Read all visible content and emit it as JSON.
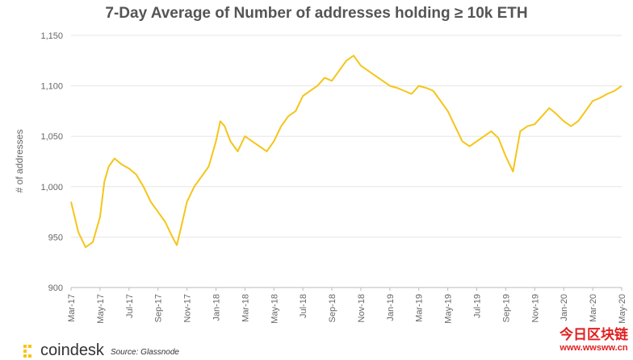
{
  "chart_data": {
    "type": "line",
    "title": "7-Day Average of Number of addresses holding ≥ 10k ETH",
    "ylabel": "# of addresses",
    "xlabel": "",
    "ylim": [
      900,
      1150
    ],
    "yticks": [
      "900",
      "950",
      "1,000",
      "1,050",
      "1,100",
      "1,150"
    ],
    "xticks": [
      "Mar-17",
      "May-17",
      "Jul-17",
      "Sep-17",
      "Nov-17",
      "Jan-18",
      "Mar-18",
      "May-18",
      "Jul-18",
      "Sep-18",
      "Nov-18",
      "Jan-19",
      "Mar-19",
      "May-19",
      "Jul-19",
      "Sep-19",
      "Nov-19",
      "Jan-20",
      "Mar-20",
      "May-20"
    ],
    "grid": "horizontal",
    "line_color": "#f5c518",
    "series": [
      {
        "x": [
          0,
          0.5,
          1,
          1.5,
          2,
          2.3,
          2.6,
          3,
          3.5,
          4,
          4.5,
          5,
          5.5,
          6,
          6.5,
          7,
          7.3,
          7.6,
          8,
          8.5,
          9,
          9.5,
          10,
          10.3,
          10.6,
          11,
          11.5,
          12,
          12.5,
          13,
          13.5,
          14,
          14.5,
          15,
          15.5,
          16,
          16.5,
          17,
          17.5,
          18,
          18.5,
          19,
          19.5,
          20,
          20.5,
          21,
          21.5,
          22,
          22.5,
          23,
          23.5,
          24,
          24.5,
          25,
          25.5,
          26,
          26.5,
          27,
          27.5,
          28,
          28.5,
          29,
          29.5,
          30,
          30.5,
          31,
          31.5,
          32,
          32.5,
          33,
          33.5,
          34,
          34.5,
          35,
          35.5,
          36,
          36.5,
          37,
          37.5,
          38
        ],
        "values": [
          985,
          955,
          940,
          945,
          970,
          1005,
          1020,
          1028,
          1022,
          1018,
          1012,
          1000,
          985,
          975,
          965,
          950,
          942,
          960,
          985,
          1000,
          1010,
          1020,
          1045,
          1065,
          1060,
          1045,
          1035,
          1050,
          1045,
          1040,
          1035,
          1045,
          1060,
          1070,
          1075,
          1090,
          1095,
          1100,
          1108,
          1105,
          1115,
          1125,
          1130,
          1120,
          1115,
          1110,
          1105,
          1100,
          1098,
          1095,
          1092,
          1100,
          1098,
          1095,
          1085,
          1075,
          1060,
          1045,
          1040,
          1045,
          1050,
          1055,
          1048,
          1030,
          1015,
          1055,
          1060,
          1062,
          1070,
          1078,
          1072,
          1065,
          1060,
          1065,
          1075,
          1085,
          1088,
          1092,
          1095,
          1100
        ]
      }
    ]
  },
  "brand": {
    "name": "coindesk",
    "icon": "coindesk-logo-icon"
  },
  "source": "Source: Glassnode",
  "watermark": {
    "text": "今日区块链",
    "url": "www.wwsww.cn"
  }
}
